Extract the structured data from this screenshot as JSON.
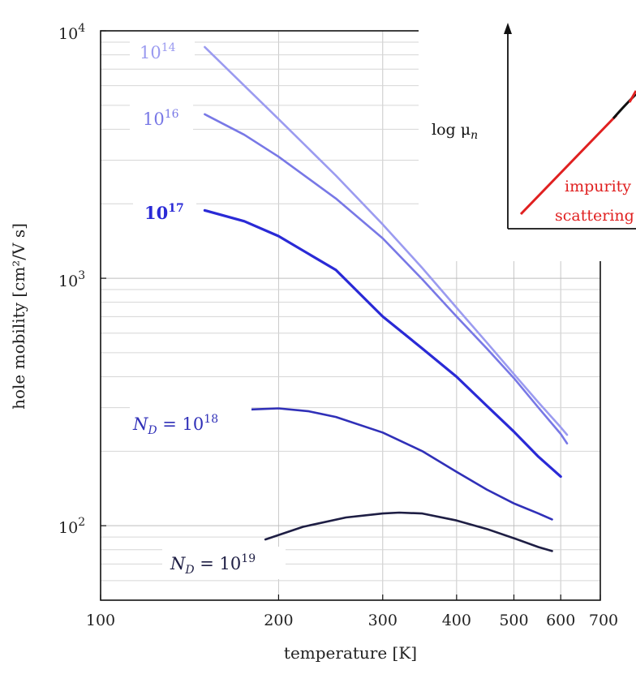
{
  "chart_data": [
    {
      "type": "line",
      "title": "",
      "xlabel": "temperature [K]",
      "ylabel": "hole mobility [cm²/V s]",
      "x_scale": "log",
      "y_scale": "log",
      "xlim": [
        100,
        700
      ],
      "ylim": [
        50,
        10000
      ],
      "x_ticks": [
        100,
        200,
        300,
        400,
        500,
        600,
        700
      ],
      "x_tick_labels": [
        "100",
        "200",
        "300",
        "400",
        "500",
        "600",
        "700"
      ],
      "y_ticks": [
        100,
        1000,
        10000
      ],
      "y_tick_base": "10",
      "y_tick_exponents": [
        "2",
        "3",
        "4"
      ],
      "grid": true,
      "series": [
        {
          "name": "10¹⁴",
          "label_base": "10",
          "label_exp": "14",
          "color": "#9b9bf0",
          "x": [
            150,
            175,
            200,
            250,
            300,
            350,
            400,
            450,
            500,
            550,
            600,
            615
          ],
          "y": [
            8600,
            6000,
            4400,
            2600,
            1650,
            1100,
            760,
            550,
            410,
            315,
            250,
            233
          ]
        },
        {
          "name": "10¹⁶",
          "label_base": "10",
          "label_exp": "16",
          "color": "#7878e6",
          "x": [
            150,
            175,
            200,
            250,
            300,
            350,
            400,
            450,
            500,
            550,
            600,
            615
          ],
          "y": [
            4600,
            3800,
            3100,
            2100,
            1450,
            990,
            700,
            520,
            395,
            300,
            235,
            215
          ]
        },
        {
          "name": "10¹⁷",
          "label_base": "10",
          "label_exp": "17",
          "color": "#2a2ad6",
          "x": [
            150,
            175,
            200,
            250,
            300,
            350,
            400,
            450,
            500,
            550,
            600
          ],
          "y": [
            1880,
            1700,
            1480,
            1080,
            700,
            520,
            400,
            305,
            240,
            190,
            158
          ]
        },
        {
          "name": "N_D = 10¹⁸",
          "label_prefix": "N",
          "label_sub": "D",
          "label_mid": " = 10",
          "label_exp": "18",
          "color": "#3030b8",
          "x": [
            180,
            200,
            225,
            250,
            300,
            350,
            400,
            450,
            500,
            550,
            580
          ],
          "y": [
            295,
            298,
            290,
            275,
            238,
            200,
            165,
            140,
            123,
            112,
            106
          ]
        },
        {
          "name": "N_D = 10¹⁹",
          "label_prefix": "N",
          "label_sub": "D",
          "label_mid": " = 10",
          "label_exp": "19",
          "color": "#1e1e44",
          "x": [
            190,
            220,
            260,
            300,
            320,
            350,
            400,
            450,
            500,
            550,
            580
          ],
          "y": [
            88,
            99,
            108,
            112,
            113,
            112,
            105,
            97,
            89,
            82,
            79
          ]
        }
      ]
    },
    {
      "type": "line",
      "title": "",
      "ylabel_base": "log μ",
      "ylabel_sub": "n",
      "annotation_lines": [
        "impurity",
        "scattering"
      ],
      "annotation_color": "#e02020",
      "series_colors": [
        "#e02020",
        "#111111"
      ]
    }
  ]
}
